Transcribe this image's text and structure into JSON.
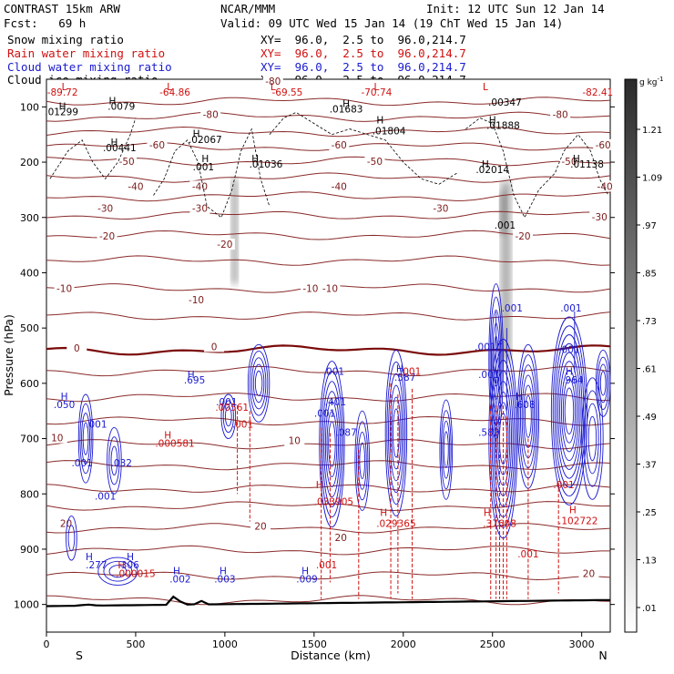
{
  "header": {
    "model": "CONTRAST 15km ARW",
    "center": "NCAR/MMM",
    "init": "Init: 12 UTC Sun 12 Jan 14",
    "fcst": "Fcst:   69 h",
    "valid": "Valid: 09 UTC Wed 15 Jan 14 (19 ChT Wed 15 Jan 14)",
    "fields": [
      {
        "name": "Snow mixing ratio",
        "xy": "XY=  96.0,  2.5 to  96.0,214.7",
        "color": "#000000"
      },
      {
        "name": "Rain water mixing ratio",
        "xy": "XY=  96.0,  2.5 to  96.0,214.7",
        "color": "#d01010"
      },
      {
        "name": "Cloud water mixing ratio",
        "xy": "XY=  96.0,  2.5 to  96.0,214.7",
        "color": "#1a1ad0"
      },
      {
        "name": "Cloud ice mixing ratio",
        "xy": "XY=  96.0,  2.5 to  96.0,214.7",
        "color": "#000000"
      }
    ]
  },
  "chart_data": {
    "type": "contour",
    "xlabel": "Distance (km)",
    "ylabel": "Pressure (hPa)",
    "xlim": [
      0,
      3160
    ],
    "ylim": [
      1050,
      50
    ],
    "x_ticks": [
      0,
      500,
      1000,
      1500,
      2000,
      2500,
      3000
    ],
    "y_ticks": [
      100,
      200,
      300,
      400,
      500,
      600,
      700,
      800,
      900,
      1000
    ],
    "x_end_labels": {
      "left": "S",
      "right": "N"
    },
    "colorbar": {
      "units": "g kg",
      "units_exp": "-1",
      "ticks": [
        "1.21",
        "1.09",
        ".97",
        ".85",
        ".73",
        ".61",
        ".49",
        ".37",
        ".25",
        ".13",
        ".01"
      ]
    },
    "temperature_isotherms": [
      {
        "label": "-80",
        "x": 1270,
        "p": 55
      },
      {
        "label": "-80",
        "x": 920,
        "p": 115
      },
      {
        "label": "-80",
        "x": 2880,
        "p": 115
      },
      {
        "label": "-60",
        "x": 620,
        "p": 170
      },
      {
        "label": "-60",
        "x": 1640,
        "p": 170
      },
      {
        "label": "-60",
        "x": 3120,
        "p": 170
      },
      {
        "label": "-50",
        "x": 450,
        "p": 200
      },
      {
        "label": "-50",
        "x": 1840,
        "p": 200
      },
      {
        "label": "-50",
        "x": 2930,
        "p": 200
      },
      {
        "label": "-40",
        "x": 500,
        "p": 245
      },
      {
        "label": "-40",
        "x": 860,
        "p": 245
      },
      {
        "label": "-40",
        "x": 1640,
        "p": 245
      },
      {
        "label": "-40",
        "x": 3130,
        "p": 245
      },
      {
        "label": "-30",
        "x": 330,
        "p": 285
      },
      {
        "label": "-30",
        "x": 860,
        "p": 285
      },
      {
        "label": "-30",
        "x": 2210,
        "p": 285
      },
      {
        "label": "-30",
        "x": 3100,
        "p": 300
      },
      {
        "label": "-20",
        "x": 340,
        "p": 335
      },
      {
        "label": "-20",
        "x": 1000,
        "p": 350
      },
      {
        "label": "-20",
        "x": 2670,
        "p": 335
      },
      {
        "label": "-10",
        "x": 100,
        "p": 430
      },
      {
        "label": "-10",
        "x": 840,
        "p": 450
      },
      {
        "label": "-10",
        "x": 1480,
        "p": 430
      },
      {
        "label": "-10",
        "x": 1590,
        "p": 430
      },
      {
        "label": "0",
        "x": 170,
        "p": 538
      },
      {
        "label": "0",
        "x": 940,
        "p": 535
      },
      {
        "label": "10",
        "x": 60,
        "p": 700
      },
      {
        "label": "10",
        "x": 1390,
        "p": 705
      },
      {
        "label": "20",
        "x": 110,
        "p": 855
      },
      {
        "label": "20",
        "x": 1200,
        "p": 860
      },
      {
        "label": "20",
        "x": 1650,
        "p": 880
      },
      {
        "label": "20",
        "x": 3040,
        "p": 945
      }
    ],
    "isotherm_levels_hpa": [
      90,
      118,
      145,
      172,
      198,
      228,
      262,
      296,
      332,
      378,
      428,
      478,
      540,
      578,
      625,
      668,
      710,
      748,
      790,
      822,
      862,
      902,
      948,
      992
    ],
    "annotations": [
      {
        "text": "L",
        "x": 100,
        "p": 70,
        "color": "red"
      },
      {
        "text": "-89.72",
        "x": 90,
        "p": 80,
        "color": "red"
      },
      {
        "text": "L",
        "x": 690,
        "p": 70,
        "color": "red"
      },
      {
        "text": "-64.86",
        "x": 720,
        "p": 80,
        "color": "red"
      },
      {
        "text": "L",
        "x": 1270,
        "p": 70,
        "color": "red"
      },
      {
        "text": "-69.55",
        "x": 1350,
        "p": 80,
        "color": "red"
      },
      {
        "text": "L",
        "x": 1850,
        "p": 70,
        "color": "red"
      },
      {
        "text": "-70.74",
        "x": 1850,
        "p": 80,
        "color": "red"
      },
      {
        "text": "L",
        "x": 2460,
        "p": 70,
        "color": "red"
      },
      {
        "text": "-82.41",
        "x": 3090,
        "p": 80,
        "color": "red"
      },
      {
        "text": "H",
        "x": 90,
        "p": 105,
        "color": "black"
      },
      {
        "text": ".01299",
        "x": 85,
        "p": 115,
        "color": "black"
      },
      {
        "text": "H",
        "x": 370,
        "p": 95,
        "color": "black"
      },
      {
        "text": ".0079",
        "x": 420,
        "p": 105,
        "color": "black"
      },
      {
        "text": "H",
        "x": 1680,
        "p": 100,
        "color": "black"
      },
      {
        "text": ".01683",
        "x": 1680,
        "p": 110,
        "color": "black"
      },
      {
        "text": ".00347",
        "x": 2570,
        "p": 98,
        "color": "black"
      },
      {
        "text": "H",
        "x": 2500,
        "p": 130,
        "color": "black"
      },
      {
        "text": ".01888",
        "x": 2560,
        "p": 140,
        "color": "black"
      },
      {
        "text": "H",
        "x": 1870,
        "p": 130,
        "color": "black"
      },
      {
        "text": ".01804",
        "x": 1920,
        "p": 150,
        "color": "black"
      },
      {
        "text": "H",
        "x": 840,
        "p": 155,
        "color": "black"
      },
      {
        "text": ".02067",
        "x": 890,
        "p": 165,
        "color": "black"
      },
      {
        "text": "H",
        "x": 380,
        "p": 170,
        "color": "black"
      },
      {
        "text": ".00441",
        "x": 410,
        "p": 180,
        "color": "black"
      },
      {
        "text": "H",
        "x": 890,
        "p": 200,
        "color": "black"
      },
      {
        "text": ".001",
        "x": 880,
        "p": 215,
        "color": "black"
      },
      {
        "text": "H",
        "x": 1170,
        "p": 200,
        "color": "black"
      },
      {
        "text": ".01036",
        "x": 1230,
        "p": 210,
        "color": "black"
      },
      {
        "text": "H",
        "x": 2460,
        "p": 210,
        "color": "black"
      },
      {
        "text": ".02014",
        "x": 2500,
        "p": 220,
        "color": "black"
      },
      {
        "text": "H",
        "x": 2970,
        "p": 200,
        "color": "black"
      },
      {
        "text": ".01138",
        "x": 3030,
        "p": 210,
        "color": "black"
      },
      {
        "text": ".001",
        "x": 2570,
        "p": 320,
        "color": "black"
      },
      {
        "text": ".001",
        "x": 2610,
        "p": 470,
        "color": "blue"
      },
      {
        "text": ".001",
        "x": 2940,
        "p": 470,
        "color": "blue"
      },
      {
        "text": ".001",
        "x": 2460,
        "p": 540,
        "color": "blue"
      },
      {
        "text": ".001",
        "x": 2930,
        "p": 545,
        "color": "blue"
      },
      {
        "text": "H",
        "x": 2540,
        "p": 535,
        "color": "blue"
      },
      {
        "text": ".001",
        "x": 1610,
        "p": 585,
        "color": "blue"
      },
      {
        "text": ".001",
        "x": 2480,
        "p": 590,
        "color": "blue"
      },
      {
        "text": "H",
        "x": 810,
        "p": 590,
        "color": "blue"
      },
      {
        "text": ".695",
        "x": 830,
        "p": 600,
        "color": "blue"
      },
      {
        "text": "H",
        "x": 1980,
        "p": 580,
        "color": "blue"
      },
      {
        "text": ".587",
        "x": 2010,
        "p": 595,
        "color": "blue"
      },
      {
        "text": ".001",
        "x": 2040,
        "p": 585,
        "color": "red"
      },
      {
        "text": "H",
        "x": 2930,
        "p": 585,
        "color": "blue"
      },
      {
        "text": ".964",
        "x": 2950,
        "p": 600,
        "color": "blue"
      },
      {
        "text": "H",
        "x": 100,
        "p": 630,
        "color": "blue"
      },
      {
        "text": ".050",
        "x": 100,
        "p": 645,
        "color": "blue"
      },
      {
        "text": ".001",
        "x": 1010,
        "p": 640,
        "color": "blue"
      },
      {
        "text": ".401",
        "x": 1620,
        "p": 640,
        "color": "blue"
      },
      {
        "text": ".00561",
        "x": 1040,
        "p": 650,
        "color": "red"
      },
      {
        "text": ".001",
        "x": 1560,
        "p": 660,
        "color": "blue"
      },
      {
        "text": "H",
        "x": 2650,
        "p": 630,
        "color": "blue"
      },
      {
        "text": ".608",
        "x": 2680,
        "p": 645,
        "color": "blue"
      },
      {
        "text": ".001",
        "x": 280,
        "p": 680,
        "color": "blue"
      },
      {
        "text": ".001",
        "x": 1100,
        "p": 680,
        "color": "red"
      },
      {
        "text": ".087",
        "x": 1680,
        "p": 695,
        "color": "blue"
      },
      {
        "text": ".583",
        "x": 2480,
        "p": 695,
        "color": "blue"
      },
      {
        "text": "H",
        "x": 680,
        "p": 700,
        "color": "red"
      },
      {
        "text": ".000581",
        "x": 720,
        "p": 715,
        "color": "red"
      },
      {
        "text": ".001",
        "x": 200,
        "p": 750,
        "color": "blue"
      },
      {
        "text": ".032",
        "x": 420,
        "p": 750,
        "color": "blue"
      },
      {
        "text": ".001",
        "x": 2900,
        "p": 790,
        "color": "red"
      },
      {
        "text": ".001",
        "x": 330,
        "p": 810,
        "color": "blue"
      },
      {
        "text": "H",
        "x": 1530,
        "p": 790,
        "color": "red"
      },
      {
        "text": ".033905",
        "x": 1610,
        "p": 820,
        "color": "red"
      },
      {
        "text": "H",
        "x": 2950,
        "p": 835,
        "color": "red"
      },
      {
        "text": ".102722",
        "x": 2980,
        "p": 855,
        "color": "red"
      },
      {
        "text": "H",
        "x": 1890,
        "p": 840,
        "color": "red"
      },
      {
        "text": ".029365",
        "x": 1960,
        "p": 860,
        "color": "red"
      },
      {
        "text": "H",
        "x": 2470,
        "p": 840,
        "color": "red"
      },
      {
        "text": ".37608",
        "x": 2540,
        "p": 860,
        "color": "red"
      },
      {
        "text": ".001",
        "x": 2700,
        "p": 915,
        "color": "red"
      },
      {
        "text": "H",
        "x": 240,
        "p": 920,
        "color": "blue"
      },
      {
        "text": ".277",
        "x": 280,
        "p": 935,
        "color": "blue"
      },
      {
        "text": "H",
        "x": 470,
        "p": 920,
        "color": "blue"
      },
      {
        "text": ".306",
        "x": 460,
        "p": 935,
        "color": "blue"
      },
      {
        "text": "H",
        "x": 420,
        "p": 935,
        "color": "red"
      },
      {
        "text": ".000015",
        "x": 500,
        "p": 950,
        "color": "red"
      },
      {
        "text": ".001",
        "x": 1570,
        "p": 935,
        "color": "red"
      },
      {
        "text": "H",
        "x": 730,
        "p": 945,
        "color": "blue"
      },
      {
        "text": ".002",
        "x": 750,
        "p": 960,
        "color": "blue"
      },
      {
        "text": "H",
        "x": 990,
        "p": 945,
        "color": "blue"
      },
      {
        "text": ".003",
        "x": 1000,
        "p": 960,
        "color": "blue"
      },
      {
        "text": "H",
        "x": 1450,
        "p": 945,
        "color": "blue"
      },
      {
        "text": ".009",
        "x": 1460,
        "p": 960,
        "color": "blue"
      }
    ]
  }
}
